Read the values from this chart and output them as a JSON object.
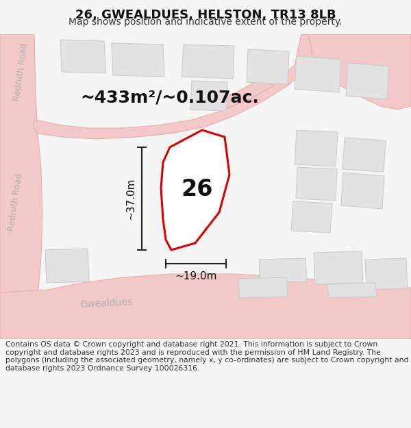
{
  "title": "26, GWEALDUES, HELSTON, TR13 8LB",
  "subtitle": "Map shows position and indicative extent of the property.",
  "footer": "Contains OS data © Crown copyright and database right 2021. This information is subject to Crown copyright and database rights 2023 and is reproduced with the permission of HM Land Registry. The polygons (including the associated geometry, namely x, y co-ordinates) are subject to Crown copyright and database rights 2023 Ordnance Survey 100026316.",
  "area_label": "~433m²/~0.107ac.",
  "plot_number": "26",
  "dim_vertical": "~37.0m",
  "dim_horizontal": "~19.0m",
  "road_label_left_top": "Redruth Road",
  "road_label_left_bottom": "Redruth Road",
  "road_label_bottom": "Gwealdues",
  "bg_color": "#f5f5f5",
  "map_bg": "#f0f0f0",
  "road_color": "#f2c8c8",
  "road_outline": "#e8a8a8",
  "building_color": "#e2e2e2",
  "building_outline": "#cccccc",
  "plot_outline_color": "#dd0000",
  "plot_fill": "#ffffff",
  "dim_line_color": "#222222",
  "text_color": "#333333",
  "road_text_color": "#b0b0b0",
  "title_fontsize": 13,
  "subtitle_fontsize": 10,
  "footer_fontsize": 7.8,
  "area_fontsize": 18,
  "plot_num_fontsize": 24,
  "dim_fontsize": 11,
  "road_fontsize": 9
}
